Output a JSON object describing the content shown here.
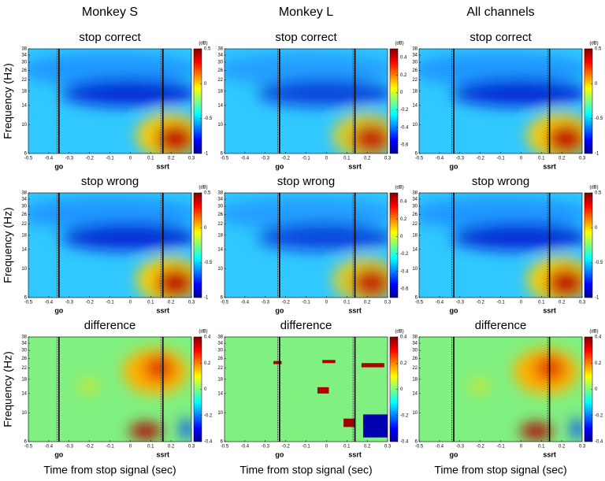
{
  "column_titles": [
    "Monkey S",
    "Monkey L",
    "All channels"
  ],
  "chart_data": [
    {
      "type": "heatmap",
      "title": "stop correct",
      "ylabel": "Frequency (Hz)",
      "colormap": "jet",
      "log_y": true,
      "xlim": [
        -0.5,
        0.3
      ],
      "xticks": [
        -0.5,
        -0.4,
        -0.3,
        -0.2,
        -0.1,
        0,
        0.1,
        0.2,
        0.3
      ],
      "ylim": [
        6,
        38
      ],
      "yticks": [
        6,
        10,
        14,
        18,
        22,
        26,
        30,
        34,
        38
      ],
      "events": [
        {
          "label": "go",
          "x": -0.35
        },
        {
          "label": "ssrt",
          "x": 0.16
        }
      ],
      "colorbar": {
        "label": "(dB)",
        "lim": [
          -1,
          0.5
        ],
        "ticks": [
          -1,
          -0.5,
          0,
          0.5
        ]
      }
    },
    {
      "type": "heatmap",
      "title": "stop correct",
      "colormap": "jet",
      "log_y": true,
      "xlim": [
        -0.5,
        0.3
      ],
      "xticks": [
        -0.5,
        -0.4,
        -0.3,
        -0.2,
        -0.1,
        0,
        0.1,
        0.2,
        0.3
      ],
      "ylim": [
        6,
        38
      ],
      "yticks": [
        6,
        10,
        14,
        18,
        22,
        26,
        30,
        34,
        38
      ],
      "events": [
        {
          "label": "go",
          "x": -0.23
        },
        {
          "label": "ssrt",
          "x": 0.14
        }
      ],
      "colorbar": {
        "label": "(dB)",
        "lim": [
          -0.7,
          0.5
        ],
        "ticks": [
          -0.6,
          -0.4,
          -0.2,
          0,
          0.2,
          0.4
        ]
      }
    },
    {
      "type": "heatmap",
      "title": "stop correct",
      "colormap": "jet",
      "log_y": true,
      "xlim": [
        -0.5,
        0.3
      ],
      "xticks": [
        -0.5,
        -0.4,
        -0.3,
        -0.2,
        -0.1,
        0,
        0.1,
        0.2,
        0.3
      ],
      "ylim": [
        6,
        38
      ],
      "yticks": [
        6,
        10,
        14,
        18,
        22,
        26,
        30,
        34,
        38
      ],
      "events": [
        {
          "label": "go",
          "x": -0.33
        },
        {
          "label": "ssrt",
          "x": 0.14
        }
      ],
      "colorbar": {
        "label": "(dB)",
        "lim": [
          -1,
          0.5
        ],
        "ticks": [
          -1,
          -0.5,
          0,
          0.5
        ]
      }
    },
    {
      "type": "heatmap",
      "title": "stop wrong",
      "ylabel": "Frequency (Hz)",
      "colormap": "jet",
      "log_y": true,
      "xlim": [
        -0.5,
        0.3
      ],
      "xticks": [
        -0.5,
        -0.4,
        -0.3,
        -0.2,
        -0.1,
        0,
        0.1,
        0.2,
        0.3
      ],
      "ylim": [
        6,
        38
      ],
      "yticks": [
        6,
        10,
        14,
        18,
        22,
        26,
        30,
        34,
        38
      ],
      "events": [
        {
          "label": "go",
          "x": -0.35
        },
        {
          "label": "ssrt",
          "x": 0.16
        }
      ],
      "colorbar": {
        "label": "(dB)",
        "lim": [
          -1,
          0.5
        ],
        "ticks": [
          -1,
          -0.5,
          0,
          0.5
        ]
      }
    },
    {
      "type": "heatmap",
      "title": "stop wrong",
      "colormap": "jet",
      "log_y": true,
      "xlim": [
        -0.5,
        0.3
      ],
      "xticks": [
        -0.5,
        -0.4,
        -0.3,
        -0.2,
        -0.1,
        0,
        0.1,
        0.2,
        0.3
      ],
      "ylim": [
        6,
        38
      ],
      "yticks": [
        6,
        10,
        14,
        18,
        22,
        26,
        30,
        34,
        38
      ],
      "events": [
        {
          "label": "go",
          "x": -0.23
        },
        {
          "label": "ssrt",
          "x": 0.14
        }
      ],
      "colorbar": {
        "label": "(dB)",
        "lim": [
          -0.7,
          0.5
        ],
        "ticks": [
          -0.6,
          -0.4,
          -0.2,
          0,
          0.2,
          0.4
        ]
      }
    },
    {
      "type": "heatmap",
      "title": "stop wrong",
      "colormap": "jet",
      "log_y": true,
      "xlim": [
        -0.5,
        0.3
      ],
      "xticks": [
        -0.5,
        -0.4,
        -0.3,
        -0.2,
        -0.1,
        0,
        0.1,
        0.2,
        0.3
      ],
      "ylim": [
        6,
        38
      ],
      "yticks": [
        6,
        10,
        14,
        18,
        22,
        26,
        30,
        34,
        38
      ],
      "events": [
        {
          "label": "go",
          "x": -0.33
        },
        {
          "label": "ssrt",
          "x": 0.14
        }
      ],
      "colorbar": {
        "label": "(dB)",
        "lim": [
          -1,
          0.5
        ],
        "ticks": [
          -1,
          -0.5,
          0,
          0.5
        ]
      }
    },
    {
      "type": "heatmap",
      "title": "difference",
      "ylabel": "Frequency (Hz)",
      "xlabel": "Time from stop signal (sec)",
      "colormap": "jet",
      "log_y": true,
      "xlim": [
        -0.5,
        0.3
      ],
      "xticks": [
        -0.5,
        -0.4,
        -0.3,
        -0.2,
        -0.1,
        0,
        0.1,
        0.2,
        0.3
      ],
      "ylim": [
        6,
        38
      ],
      "yticks": [
        6,
        10,
        14,
        18,
        22,
        26,
        30,
        34,
        38
      ],
      "events": [
        {
          "label": "go",
          "x": -0.35
        },
        {
          "label": "ssrt",
          "x": 0.16
        }
      ],
      "colorbar": {
        "label": "(dB)",
        "lim": [
          -0.4,
          0.4
        ],
        "ticks": [
          -0.4,
          -0.2,
          0,
          0.2,
          0.4
        ]
      }
    },
    {
      "type": "heatmap",
      "title": "difference",
      "xlabel": "Time from stop signal (sec)",
      "colormap": "jet",
      "log_y": true,
      "xlim": [
        -0.5,
        0.3
      ],
      "xticks": [
        -0.5,
        -0.4,
        -0.3,
        -0.2,
        -0.1,
        0,
        0.1,
        0.2,
        0.3
      ],
      "ylim": [
        6,
        38
      ],
      "yticks": [
        6,
        10,
        14,
        18,
        22,
        26,
        30,
        34,
        38
      ],
      "events": [
        {
          "label": "go",
          "x": -0.23
        },
        {
          "label": "ssrt",
          "x": 0.14
        }
      ],
      "colorbar": {
        "label": "(dB)",
        "lim": [
          -0.4,
          0.4
        ],
        "ticks": [
          -0.4,
          -0.2,
          0,
          0.2,
          0.4
        ]
      }
    },
    {
      "type": "heatmap",
      "title": "difference",
      "xlabel": "Time from stop signal (sec)",
      "colormap": "jet",
      "log_y": true,
      "xlim": [
        -0.5,
        0.3
      ],
      "xticks": [
        -0.5,
        -0.4,
        -0.3,
        -0.2,
        -0.1,
        0,
        0.1,
        0.2,
        0.3
      ],
      "ylim": [
        6,
        38
      ],
      "yticks": [
        6,
        10,
        14,
        18,
        22,
        26,
        30,
        34,
        38
      ],
      "events": [
        {
          "label": "go",
          "x": -0.33
        },
        {
          "label": "ssrt",
          "x": 0.14
        }
      ],
      "colorbar": {
        "label": "(dB)",
        "lim": [
          -0.4,
          0.4
        ],
        "ticks": [
          -0.4,
          -0.2,
          0,
          0.2,
          0.4
        ]
      }
    }
  ]
}
